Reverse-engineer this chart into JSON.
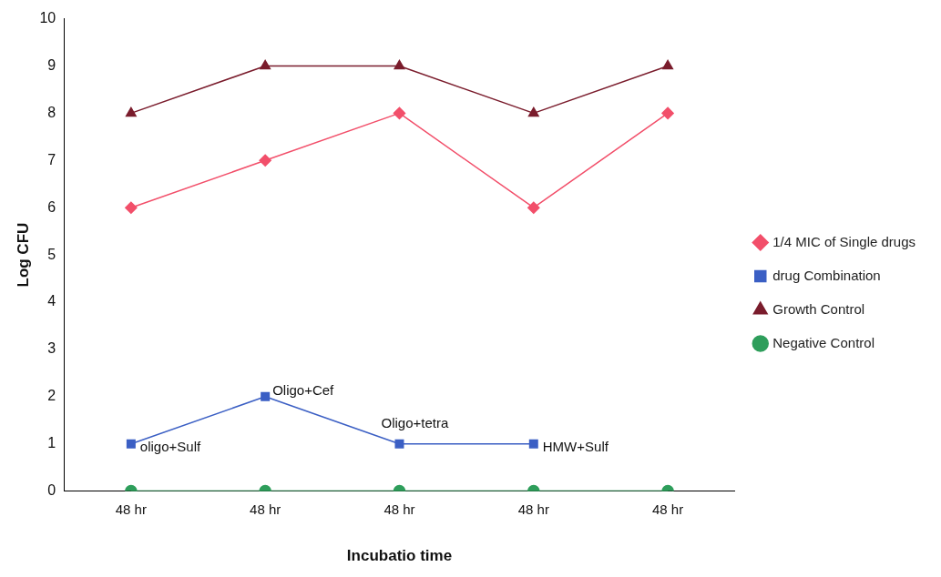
{
  "chart_data": {
    "type": "line",
    "xlabel": "Incubatio time",
    "ylabel": "Log CFU",
    "categories": [
      "48 hr",
      "48 hr",
      "48 hr",
      "48 hr",
      "48 hr"
    ],
    "ylim": [
      0,
      10
    ],
    "yticks": [
      0,
      1,
      2,
      3,
      4,
      5,
      6,
      7,
      8,
      9,
      10
    ],
    "grid": false,
    "legend": "right",
    "series": [
      {
        "name": "1/4 MIC of Single drugs",
        "color": "#f24f6a",
        "marker": "diamond",
        "values": [
          6,
          7,
          8,
          6,
          8
        ]
      },
      {
        "name": "drug Combination",
        "color": "#3b5fc4",
        "marker": "square",
        "values": [
          1,
          2,
          1,
          1,
          null
        ],
        "value_labels": [
          "oligo+Sulf",
          "Oligo+Cef",
          "Oligo+tetra",
          "HMW+Sulf",
          null
        ]
      },
      {
        "name": "Growth Control",
        "color": "#7a1c2c",
        "marker": "triangle",
        "values": [
          8,
          9,
          9,
          8,
          9
        ]
      },
      {
        "name": "Negative Control",
        "color": "#2e9e5b",
        "marker": "circle",
        "values": [
          0,
          0,
          0,
          0,
          0
        ]
      }
    ]
  }
}
